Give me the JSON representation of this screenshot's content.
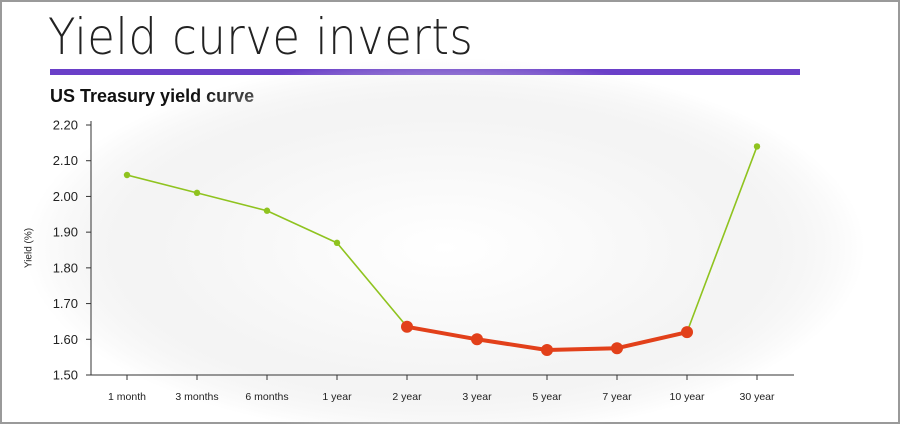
{
  "header": {
    "title": "Yield curve inverts",
    "subtitle": "US Treasury yield curve"
  },
  "colors": {
    "accent_rule": "#6a3fc8",
    "normal_series": "#8fc31f",
    "inverted_series": "#e2401a"
  },
  "chart_data": {
    "type": "line",
    "title": "US Treasury yield curve",
    "xlabel": "",
    "ylabel": "Yield (%)",
    "categories": [
      "1 month",
      "3 months",
      "6 months",
      "1 year",
      "2 year",
      "3 year",
      "5 year",
      "7 year",
      "10 year",
      "30 year"
    ],
    "values": [
      2.06,
      2.01,
      1.96,
      1.87,
      1.635,
      1.6,
      1.57,
      1.575,
      1.62,
      2.14
    ],
    "highlight_range": [
      4,
      8
    ],
    "ylim": [
      1.5,
      2.2
    ],
    "yticks": [
      "2.20",
      "2.10",
      "2.00",
      "1.90",
      "1.80",
      "1.70",
      "1.60",
      "1.50"
    ],
    "grid": false,
    "legend": "none"
  }
}
